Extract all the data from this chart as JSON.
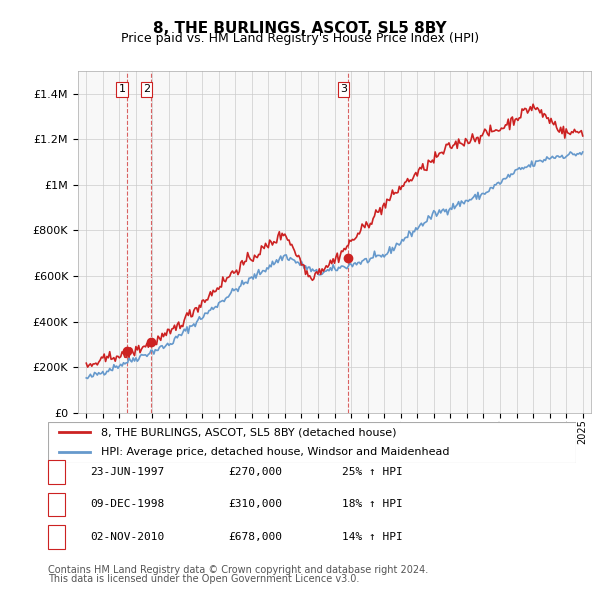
{
  "title": "8, THE BURLINGS, ASCOT, SL5 8BY",
  "subtitle": "Price paid vs. HM Land Registry's House Price Index (HPI)",
  "legend_line1": "8, THE BURLINGS, ASCOT, SL5 8BY (detached house)",
  "legend_line2": "HPI: Average price, detached house, Windsor and Maidenhead",
  "transactions": [
    {
      "num": 1,
      "date": "23-JUN-1997",
      "price": 270000,
      "hpi_pct": "25% ↑ HPI",
      "year": 1997.47
    },
    {
      "num": 2,
      "date": "09-DEC-1998",
      "price": 310000,
      "hpi_pct": "18% ↑ HPI",
      "year": 1998.93
    },
    {
      "num": 3,
      "date": "02-NOV-2010",
      "price": 678000,
      "hpi_pct": "14% ↑ HPI",
      "year": 2010.83
    }
  ],
  "footer1": "Contains HM Land Registry data © Crown copyright and database right 2024.",
  "footer2": "This data is licensed under the Open Government Licence v3.0.",
  "hpi_color": "#6699cc",
  "price_color": "#cc2222",
  "marker_color": "#cc2222",
  "background_color": "#ffffff",
  "grid_color": "#cccccc",
  "ylim": [
    0,
    1500000
  ],
  "xlim_start": 1994.5,
  "xlim_end": 2025.5
}
